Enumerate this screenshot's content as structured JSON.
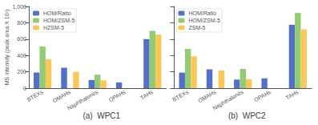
{
  "chart_data": [
    {
      "type": "bar",
      "title": "(a)  WPC1",
      "categories": [
        "BTEXs",
        "OMAHs",
        "Naphthalenes",
        "OPAHs",
        "TAHs"
      ],
      "series": [
        {
          "name": "HOM/Ratio",
          "values": [
            190,
            250,
            100,
            70,
            600
          ]
        },
        {
          "name": "HOM/ZSM-5",
          "values": [
            510,
            0,
            165,
            0,
            700
          ]
        },
        {
          "name": "HZSM-5",
          "values": [
            355,
            200,
            95,
            0,
            655
          ]
        }
      ],
      "ylabel": "MS intensity (peak area X 10²)",
      "ylim": [
        0,
        1000
      ],
      "yticks": [
        0,
        200,
        400,
        600,
        800,
        1000
      ],
      "grid": false,
      "legend": "upper left"
    },
    {
      "type": "bar",
      "title": "(b)  WPC2",
      "categories": [
        "BTEXs",
        "OMAHs",
        "Naphthalenes",
        "OPAHs",
        "TAHs"
      ],
      "series": [
        {
          "name": "HOM/Ratio",
          "values": [
            190,
            230,
            105,
            120,
            775
          ]
        },
        {
          "name": "HOM/ZSM-5",
          "values": [
            480,
            0,
            235,
            0,
            920
          ]
        },
        {
          "name": "ZSM-5",
          "values": [
            390,
            215,
            110,
            0,
            720
          ]
        }
      ],
      "ylim": [
        0,
        1000
      ],
      "yticks": [
        0,
        200,
        400,
        600,
        800,
        1000
      ],
      "grid": false,
      "legend": "upper left",
      "tick_labels": "x"
    }
  ]
}
